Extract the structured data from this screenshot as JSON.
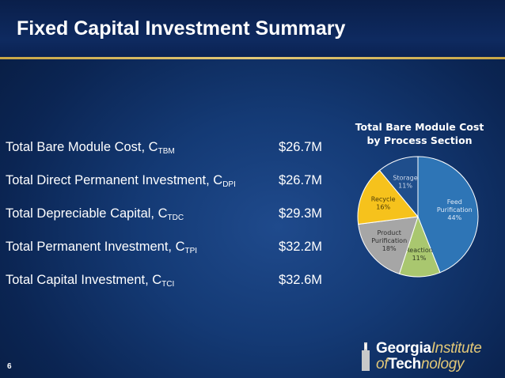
{
  "header": {
    "title": "Fixed Capital Investment Summary"
  },
  "summary": {
    "rows": [
      {
        "label": "Total Bare Module Cost, C",
        "sub": "TBM",
        "value": "$26.7M"
      },
      {
        "label": "Total Direct Permanent Investment, C",
        "sub": "DPI",
        "value": "$26.7M"
      },
      {
        "label": "Total Depreciable Capital, C",
        "sub": "TDC",
        "value": "$29.3M"
      },
      {
        "label": "Total Permanent Investment, C",
        "sub": "TPI",
        "value": "$32.2M"
      },
      {
        "label": "Total Capital Investment, C",
        "sub": "TCI",
        "value": "$32.6M"
      }
    ]
  },
  "chart_data": {
    "type": "pie",
    "title": "Total Bare Module Cost by Process Section",
    "slices": [
      {
        "label": "Feed Purification",
        "value": 44,
        "pct": "44%",
        "color": "#2e75b6"
      },
      {
        "label": "Reaction",
        "value": 11,
        "pct": "11%",
        "color": "#a9c76f"
      },
      {
        "label": "Product Purification",
        "value": 18,
        "pct": "18%",
        "color": "#a6a6a6"
      },
      {
        "label": "Recycle",
        "value": 16,
        "pct": "16%",
        "color": "#f6c21c"
      },
      {
        "label": "Storage",
        "value": 11,
        "pct": "11%",
        "color": "#1f4e8c"
      }
    ]
  },
  "footer": {
    "page_number": "6",
    "logo": {
      "word1": "Georgia",
      "word2": "Institute",
      "word3": "of",
      "word4": "Tech",
      "word5": "nology"
    }
  }
}
